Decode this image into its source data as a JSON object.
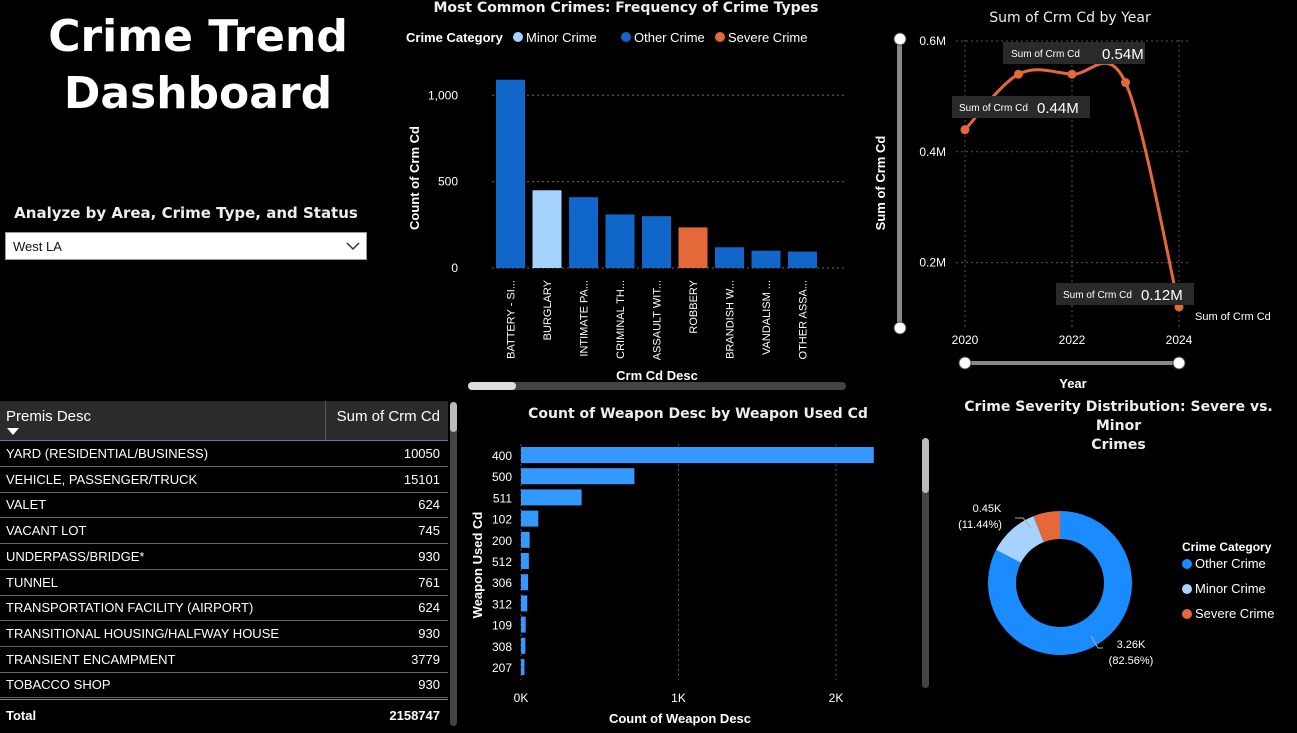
{
  "dashboard": {
    "title_line1": "Crime Trend",
    "title_line2": "Dashboard"
  },
  "slicer": {
    "label": "Analyze by Area, Crime Type, and Status",
    "selected": "West LA"
  },
  "crime_types_chart": {
    "title": "Most Common Crimes: Frequency of Crime Types",
    "legend_title": "Crime Category",
    "legend": [
      {
        "name": "Minor Crime",
        "color": "#a6d2ff"
      },
      {
        "name": "Other Crime",
        "color": "#1167c9"
      },
      {
        "name": "Severe Crime",
        "color": "#e5683a"
      }
    ],
    "ylabel": "Count of Crm Cd",
    "xlabel": "Crm Cd Desc",
    "yticks": [
      "1,000",
      "500",
      "0"
    ]
  },
  "year_chart": {
    "title": "Sum of Crm Cd by Year",
    "ylabel": "Sum of Crm Cd",
    "xlabel": "Year",
    "yticks": [
      "0.6M",
      "0.4M",
      "0.2M"
    ],
    "xticks": [
      "2020",
      "2022",
      "2024"
    ],
    "tooltip_prefix": "Sum of Crm Cd",
    "tooltips": [
      "0.54M",
      "0.44M",
      "0.12M"
    ],
    "end_label": "Sum of Crm Cd"
  },
  "premis_table": {
    "col1": "Premis Desc",
    "col2": "Sum of Crm Cd",
    "rows": [
      {
        "name": "YARD (RESIDENTIAL/BUSINESS)",
        "value": "10050"
      },
      {
        "name": "VEHICLE, PASSENGER/TRUCK",
        "value": "15101"
      },
      {
        "name": "VALET",
        "value": "624"
      },
      {
        "name": "VACANT LOT",
        "value": "745"
      },
      {
        "name": "UNDERPASS/BRIDGE*",
        "value": "930"
      },
      {
        "name": "TUNNEL",
        "value": "761"
      },
      {
        "name": "TRANSPORTATION FACILITY (AIRPORT)",
        "value": "624"
      },
      {
        "name": "TRANSITIONAL HOUSING/HALFWAY HOUSE",
        "value": "930"
      },
      {
        "name": "TRANSIENT ENCAMPMENT",
        "value": "3779"
      },
      {
        "name": "TOBACCO SHOP",
        "value": "930"
      }
    ],
    "total_label": "Total",
    "total_value": "2158747"
  },
  "weapon_chart": {
    "title": "Count of Weapon Desc by Weapon Used Cd",
    "ylabel": "Weapon Used Cd",
    "xlabel": "Count of Weapon Desc",
    "xticks": [
      "0K",
      "1K",
      "2K"
    ],
    "color": "#3399ff"
  },
  "severity_chart": {
    "title_line1": "Crime Severity Distribution: Severe vs. Minor",
    "title_line2": "Crimes",
    "legend_title": "Crime Category",
    "label_minor_value": "0.45K",
    "label_minor_pct": "(11.44%)",
    "label_other_value": "3.26K",
    "label_other_pct": "(82.56%)"
  },
  "chart_data": [
    {
      "type": "bar",
      "title": "Most Common Crimes: Frequency of Crime Types",
      "xlabel": "Crm Cd Desc",
      "ylabel": "Count of Crm Cd",
      "ylim": [
        0,
        1100
      ],
      "categories": [
        "BATTERY - SI...",
        "BURGLARY",
        "INTIMATE PA...",
        "CRIMINAL TH...",
        "ASSAULT WIT...",
        "ROBBERY",
        "BRANDISH W...",
        "VANDALISM ...",
        "OTHER ASSA..."
      ],
      "values": [
        1090,
        450,
        410,
        310,
        300,
        235,
        120,
        100,
        95
      ],
      "category_colors": [
        "Other Crime",
        "Minor Crime",
        "Other Crime",
        "Other Crime",
        "Other Crime",
        "Severe Crime",
        "Other Crime",
        "Other Crime",
        "Other Crime"
      ],
      "legend": "top"
    },
    {
      "type": "line",
      "title": "Sum of Crm Cd by Year",
      "xlabel": "Year",
      "ylabel": "Sum of Crm Cd",
      "x": [
        2020,
        2021,
        2022,
        2023,
        2024
      ],
      "values": [
        440000,
        540000,
        540000,
        525000,
        120000
      ],
      "ylim": [
        100000,
        600000
      ],
      "color": "#e5683a",
      "grid": true
    },
    {
      "type": "bar",
      "orientation": "horizontal",
      "title": "Count of Weapon Desc by Weapon Used Cd",
      "xlabel": "Count of Weapon Desc",
      "ylabel": "Weapon Used Cd",
      "categories": [
        "400",
        "500",
        "511",
        "102",
        "200",
        "512",
        "306",
        "312",
        "109",
        "308",
        "207"
      ],
      "values": [
        2240,
        720,
        385,
        110,
        55,
        50,
        45,
        40,
        30,
        28,
        22
      ],
      "xlim": [
        0,
        2300
      ]
    },
    {
      "type": "pie",
      "title": "Crime Severity Distribution: Severe vs. Minor Crimes",
      "donut": true,
      "slices": [
        {
          "name": "Other Crime",
          "value": 3260,
          "percent": 82.56,
          "color": "#1a8cff"
        },
        {
          "name": "Minor Crime",
          "value": 450,
          "percent": 11.44,
          "color": "#a6d2ff"
        },
        {
          "name": "Severe Crime",
          "value": 237,
          "percent": 6.0,
          "color": "#e5683a"
        }
      ],
      "legend": "right"
    }
  ]
}
